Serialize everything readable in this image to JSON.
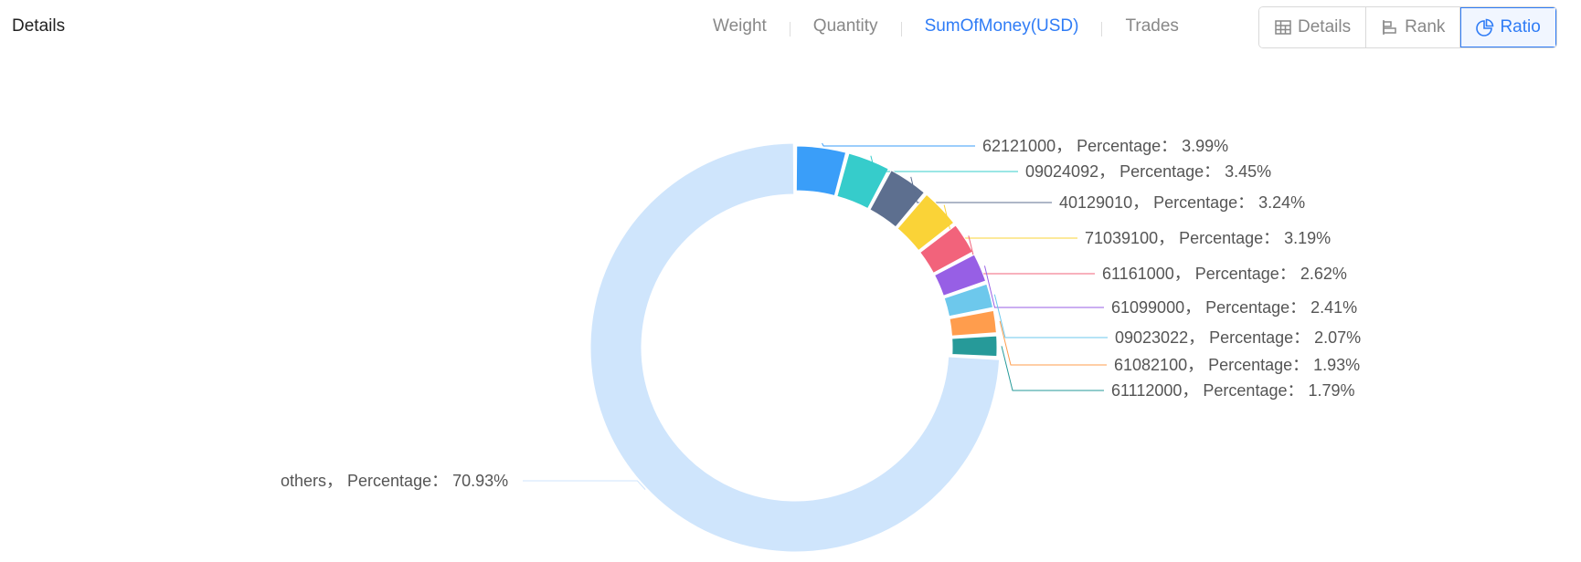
{
  "header": {
    "title": "Details",
    "metric_tabs": [
      {
        "label": "Weight",
        "active": false
      },
      {
        "label": "Quantity",
        "active": false
      },
      {
        "label": "SumOfMoney(USD)",
        "active": true
      },
      {
        "label": "Trades",
        "active": false
      }
    ],
    "view_buttons": [
      {
        "label": "Details",
        "icon": "table-icon",
        "active": false
      },
      {
        "label": "Rank",
        "icon": "bar-rank-icon",
        "active": false
      },
      {
        "label": "Ratio",
        "icon": "pie-chart-icon",
        "active": true
      }
    ]
  },
  "colors": {
    "accent": "#2f7cf6",
    "inactive_text": "#888888"
  },
  "chart_data": {
    "type": "pie",
    "variant": "donut",
    "label_template": "{name}， Percentage： {value}%",
    "slices": [
      {
        "name": "62121000",
        "value": 3.99,
        "color": "#3a9ef9"
      },
      {
        "name": "09024092",
        "value": 3.45,
        "color": "#36cccb"
      },
      {
        "name": "40129010",
        "value": 3.24,
        "color": "#5d6f8f"
      },
      {
        "name": "71039100",
        "value": 3.19,
        "color": "#fad337"
      },
      {
        "name": "61161000",
        "value": 2.62,
        "color": "#f2637b"
      },
      {
        "name": "61099000",
        "value": 2.41,
        "color": "#975fe5"
      },
      {
        "name": "09023022",
        "value": 2.07,
        "color": "#6dc8ec"
      },
      {
        "name": "61082100",
        "value": 1.93,
        "color": "#ff9d4d"
      },
      {
        "name": "61112000",
        "value": 1.79,
        "color": "#269a99"
      },
      {
        "name": "others",
        "value": 70.93,
        "color": "#ff99c3"
      }
    ],
    "others_color": "#cfe5fc"
  }
}
